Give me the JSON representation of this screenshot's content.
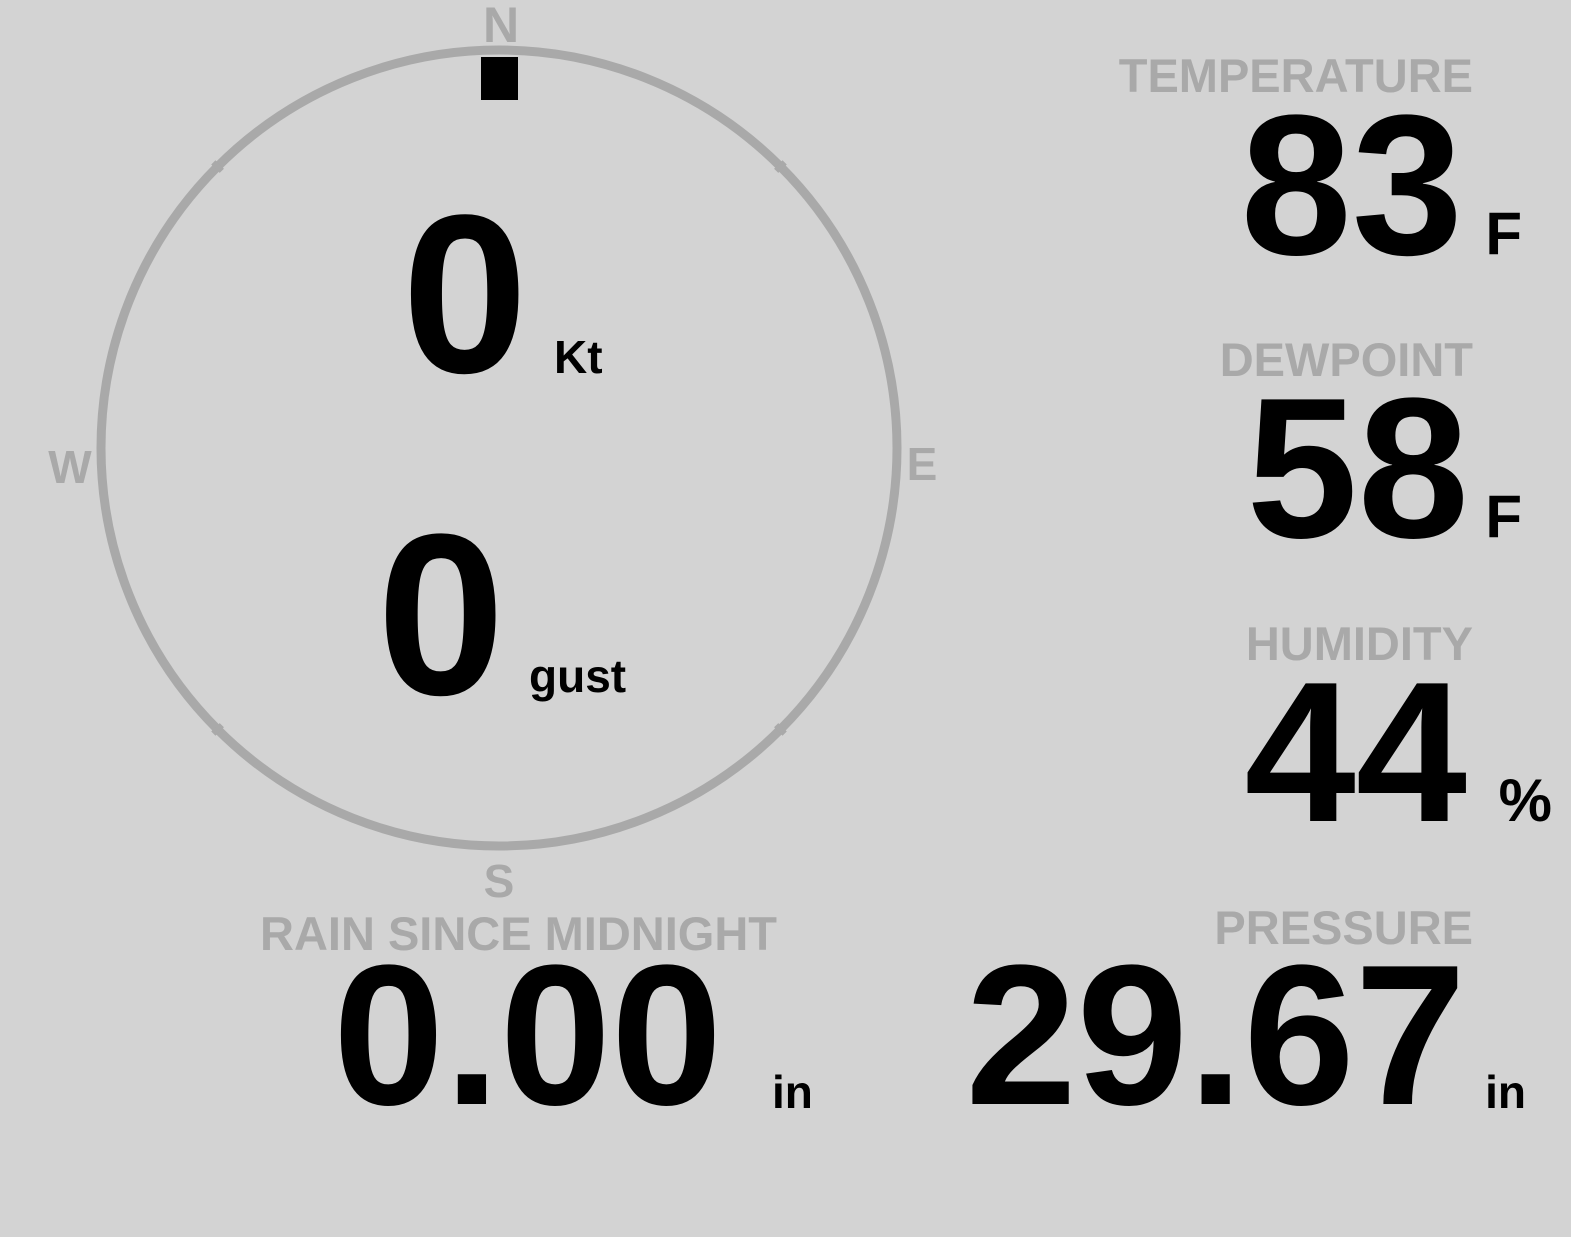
{
  "wind": {
    "compass": {
      "north": "N",
      "south": "S",
      "east": "E",
      "west": "W"
    },
    "direction_degrees": 0,
    "speed": "0",
    "speed_unit": "Kt",
    "gust": "0",
    "gust_unit": "gust"
  },
  "temperature": {
    "label": "TEMPERATURE",
    "value": "83",
    "unit": "F"
  },
  "dewpoint": {
    "label": "DEWPOINT",
    "value": "58",
    "unit": "F"
  },
  "humidity": {
    "label": "HUMIDITY",
    "value": "44",
    "unit": "%"
  },
  "pressure": {
    "label": "PRESSURE",
    "value": "29.67",
    "unit": "in"
  },
  "rain": {
    "label": "RAIN SINCE MIDNIGHT",
    "value": "0.00",
    "unit": "in"
  },
  "colors": {
    "background": "#d3d3d3",
    "label": "#a9a9a9",
    "value": "#000000"
  }
}
